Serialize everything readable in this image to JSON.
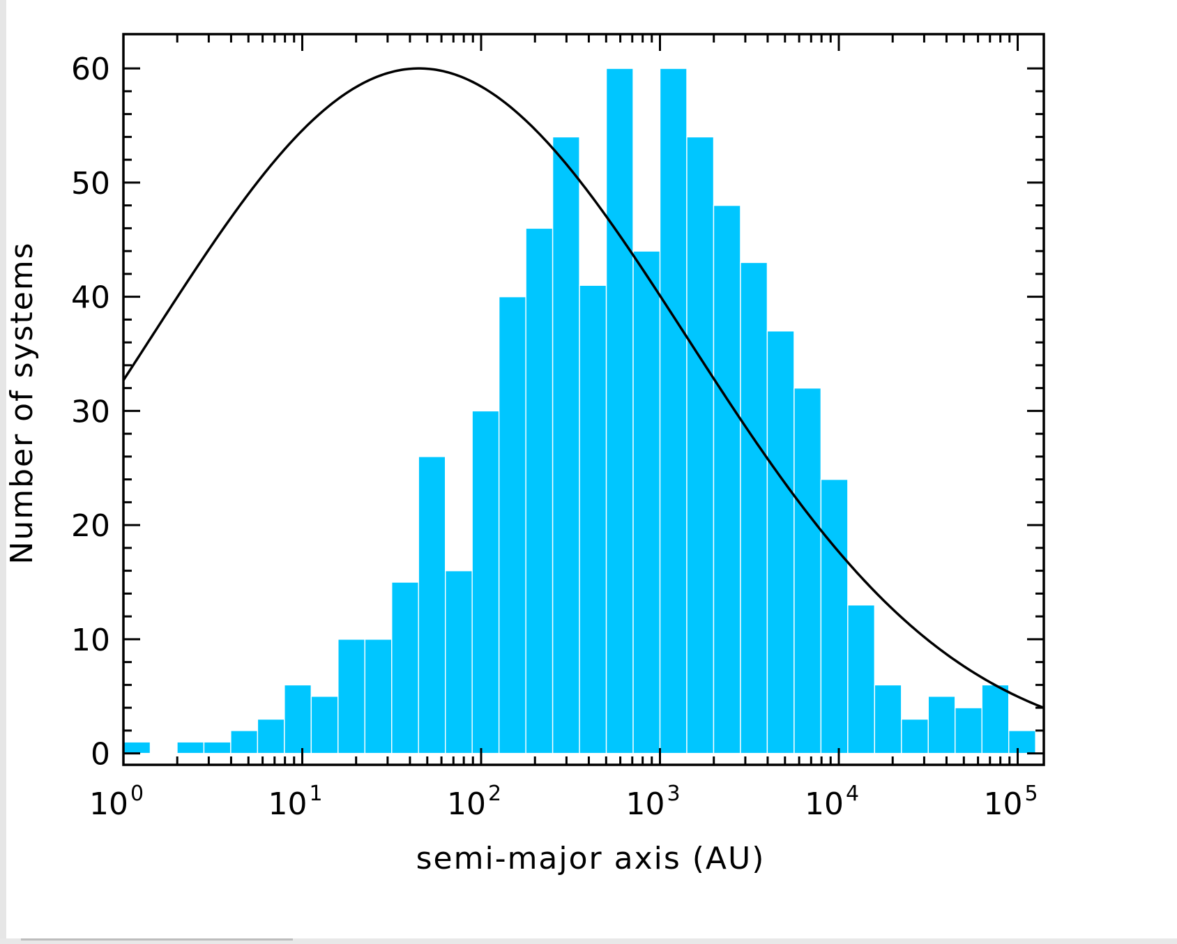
{
  "chart_data": {
    "type": "bar",
    "xlabel": "semi-major axis (AU)",
    "ylabel": "Number of systems",
    "x_scale": "log10",
    "xlim": [
      1,
      140000
    ],
    "ylim": [
      -1,
      63
    ],
    "y_ticks": [
      0,
      10,
      20,
      30,
      40,
      50,
      60
    ],
    "x_ticks": [
      {
        "base": "10",
        "exp": "0",
        "value": 1
      },
      {
        "base": "10",
        "exp": "1",
        "value": 10
      },
      {
        "base": "10",
        "exp": "2",
        "value": 100
      },
      {
        "base": "10",
        "exp": "3",
        "value": 1000
      },
      {
        "base": "10",
        "exp": "4",
        "value": 10000
      },
      {
        "base": "10",
        "exp": "5",
        "value": 100000
      }
    ],
    "bin_width_log10": 0.15,
    "bins_start_log10": 0,
    "counts": [
      1,
      0,
      1,
      1,
      2,
      3,
      6,
      5,
      10,
      10,
      15,
      26,
      16,
      30,
      40,
      46,
      54,
      41,
      60,
      44,
      60,
      54,
      48,
      43,
      37,
      32,
      24,
      13,
      6,
      3,
      5,
      4,
      6,
      2
    ],
    "curve": {
      "type": "log-normal",
      "peak_y": 60,
      "peak_x": 45,
      "sigma_log10": 1.5
    },
    "bar_color": "#00c6ff",
    "curve_color": "#000000",
    "grid": false,
    "legend": "none"
  }
}
